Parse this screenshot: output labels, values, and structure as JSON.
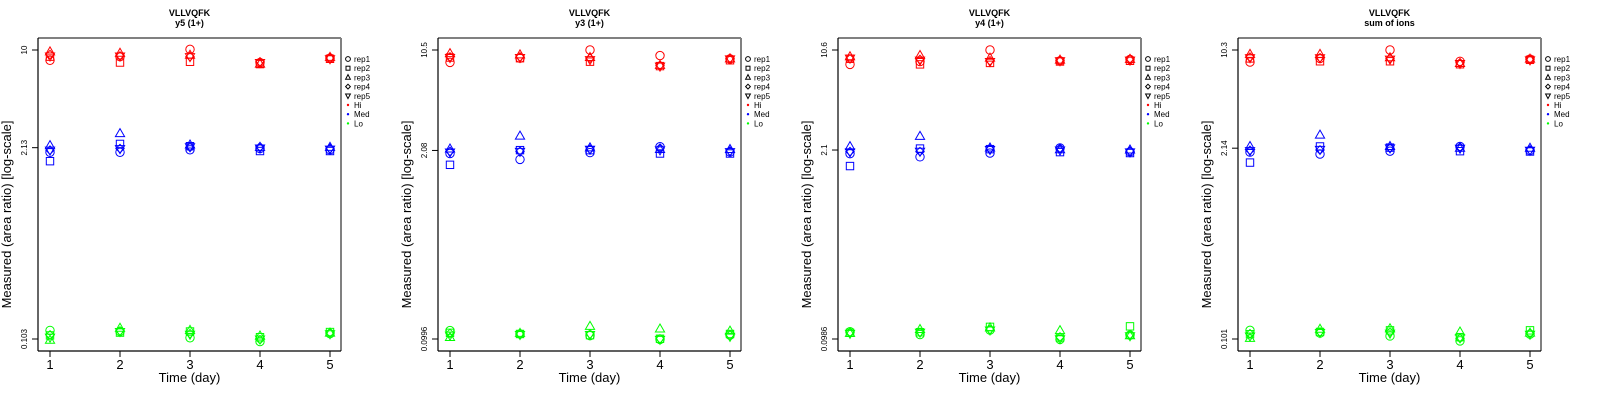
{
  "colors": {
    "Hi": "#ff0000",
    "Med": "#0000ff",
    "Lo": "#00ff00",
    "axis": "#000000",
    "box_light": "#808080"
  },
  "chart_data": [
    {
      "type": "scatter",
      "title": "VLLVQFK",
      "subtitle": "y5 (1+)",
      "xlabel": "Time (day)",
      "ylabel": "Measured (area ratio) [log-scale]",
      "yscale": "log",
      "x_ticks": [
        "1",
        "2",
        "3",
        "4",
        "5"
      ],
      "y_tick_labels": [
        "10",
        "2.13",
        "0.103"
      ],
      "y_tick_values": [
        10,
        2.13,
        0.103
      ],
      "xlim": [
        0.85,
        5.15
      ],
      "ylim": [
        0.0852,
        12.09
      ],
      "legend_position": "right",
      "legend": [
        "rep1",
        "rep2",
        "rep3",
        "rep4",
        "rep5",
        "Hi",
        "Med",
        "Lo"
      ],
      "series": [
        {
          "name": "Hi",
          "reps": {
            "rep1": [
              8.5,
              9.0,
              10.1,
              8.2,
              8.8
            ],
            "rep2": [
              9.0,
              8.2,
              8.3,
              8.0,
              8.7
            ],
            "rep3": [
              9.7,
              9.5,
              9.2,
              8.0,
              8.9
            ],
            "rep4": [
              9.3,
              9.1,
              9.0,
              8.3,
              8.8
            ],
            "rep5": [
              9.1,
              9.1,
              9.0,
              8.2,
              8.7
            ]
          }
        },
        {
          "name": "Med",
          "reps": {
            "rep1": [
              1.98,
              1.98,
              2.06,
              2.1,
              2.06
            ],
            "rep2": [
              1.72,
              2.26,
              2.18,
              2.02,
              2.02
            ],
            "rep3": [
              2.2,
              2.66,
              2.22,
              2.14,
              2.14
            ],
            "rep4": [
              2.05,
              2.1,
              2.14,
              2.16,
              2.1
            ],
            "rep5": [
              2.05,
              2.1,
              2.16,
              2.12,
              2.08
            ]
          }
        },
        {
          "name": "Lo",
          "reps": {
            "rep1": [
              0.118,
              0.116,
              0.105,
              0.099,
              0.112
            ],
            "rep2": [
              0.109,
              0.114,
              0.116,
              0.106,
              0.115
            ],
            "rep3": [
              0.101,
              0.122,
              0.118,
              0.108,
              0.113
            ],
            "rep4": [
              0.11,
              0.117,
              0.112,
              0.102,
              0.114
            ],
            "rep5": [
              0.106,
              0.116,
              0.111,
              0.103,
              0.112
            ]
          }
        }
      ]
    },
    {
      "type": "scatter",
      "title": "VLLVQFK",
      "subtitle": "y3 (1+)",
      "xlabel": "Time (day)",
      "ylabel": "Measured (area ratio) [log-scale]",
      "yscale": "log",
      "x_ticks": [
        "1",
        "2",
        "3",
        "4",
        "5"
      ],
      "y_tick_labels": [
        "10.5",
        "2.08",
        "0.0996"
      ],
      "y_tick_values": [
        10.5,
        2.08,
        0.0996
      ],
      "xlim": [
        0.85,
        5.15
      ],
      "ylim": [
        0.0822,
        12.72
      ],
      "legend_position": "right",
      "legend": [
        "rep1",
        "rep2",
        "rep3",
        "rep4",
        "rep5",
        "Hi",
        "Med",
        "Lo"
      ],
      "series": [
        {
          "name": "Hi",
          "reps": {
            "rep1": [
              8.6,
              9.2,
              10.5,
              9.6,
              9.1
            ],
            "rep2": [
              9.3,
              9.2,
              8.7,
              8.1,
              8.9
            ],
            "rep3": [
              9.9,
              9.7,
              9.3,
              8.2,
              9.1
            ],
            "rep4": [
              9.4,
              9.4,
              9.2,
              8.2,
              9.2
            ],
            "rep5": [
              9.3,
              9.3,
              9.0,
              8.1,
              9.1
            ]
          }
        },
        {
          "name": "Med",
          "reps": {
            "rep1": [
              1.98,
              1.8,
              2.01,
              2.21,
              2.03
            ],
            "rep2": [
              1.65,
              2.09,
              2.09,
              1.98,
              1.98
            ],
            "rep3": [
              2.13,
              2.62,
              2.17,
              2.11,
              2.11
            ],
            "rep4": [
              2.05,
              2.05,
              2.12,
              2.16,
              2.06
            ],
            "rep5": [
              2.03,
              2.05,
              2.12,
              2.1,
              2.04
            ]
          }
        },
        {
          "name": "Lo",
          "reps": {
            "rep1": [
              0.114,
              0.108,
              0.105,
              0.099,
              0.106
            ],
            "rep2": [
              0.11,
              0.108,
              0.106,
              0.1,
              0.108
            ],
            "rep3": [
              0.102,
              0.109,
              0.122,
              0.117,
              0.113
            ],
            "rep4": [
              0.109,
              0.108,
              0.108,
              0.1,
              0.106
            ],
            "rep5": [
              0.106,
              0.107,
              0.107,
              0.099,
              0.104
            ]
          }
        }
      ]
    },
    {
      "type": "scatter",
      "title": "VLLVQFK",
      "subtitle": "y4 (1+)",
      "xlabel": "Time (day)",
      "ylabel": "Measured (area ratio) [log-scale]",
      "yscale": "log",
      "x_ticks": [
        "1",
        "2",
        "3",
        "4",
        "5"
      ],
      "y_tick_labels": [
        "10.6",
        "2.1",
        "0.0986"
      ],
      "y_tick_values": [
        10.6,
        2.1,
        0.0986
      ],
      "xlim": [
        0.85,
        5.15
      ],
      "ylim": [
        0.0814,
        12.84
      ],
      "legend_position": "right",
      "legend": [
        "rep1",
        "rep2",
        "rep3",
        "rep4",
        "rep5",
        "Hi",
        "Med",
        "Lo"
      ],
      "series": [
        {
          "name": "Hi",
          "reps": {
            "rep1": [
              8.4,
              8.8,
              10.6,
              8.9,
              9.1
            ],
            "rep2": [
              9.2,
              8.4,
              8.6,
              8.8,
              8.9
            ],
            "rep3": [
              9.5,
              9.7,
              9.3,
              9.0,
              9.1
            ],
            "rep4": [
              9.2,
              9.1,
              8.9,
              8.9,
              9.2
            ],
            "rep5": [
              9.3,
              9.0,
              8.8,
              8.9,
              9.0
            ]
          }
        },
        {
          "name": "Med",
          "reps": {
            "rep1": [
              1.98,
              1.88,
              2.0,
              2.17,
              2.04
            ],
            "rep2": [
              1.62,
              2.15,
              2.13,
              2.03,
              2.0
            ],
            "rep3": [
              2.22,
              2.62,
              2.17,
              2.11,
              2.1
            ],
            "rep4": [
              2.05,
              2.05,
              2.13,
              2.16,
              2.06
            ],
            "rep5": [
              2.04,
              2.06,
              2.12,
              2.1,
              2.04
            ]
          }
        },
        {
          "name": "Lo",
          "reps": {
            "rep1": [
              0.111,
              0.106,
              0.114,
              0.098,
              0.105
            ],
            "rep2": [
              0.109,
              0.11,
              0.12,
              0.101,
              0.121
            ],
            "rep3": [
              0.108,
              0.115,
              0.118,
              0.113,
              0.104
            ],
            "rep4": [
              0.11,
              0.11,
              0.115,
              0.102,
              0.106
            ],
            "rep5": [
              0.108,
              0.11,
              0.114,
              0.099,
              0.104
            ]
          }
        }
      ]
    },
    {
      "type": "scatter",
      "title": "VLLVQFK",
      "subtitle": "sum of ions",
      "xlabel": "Time (day)",
      "ylabel": "Measured (area ratio) [log-scale]",
      "yscale": "log",
      "x_ticks": [
        "1",
        "2",
        "3",
        "4",
        "5"
      ],
      "y_tick_labels": [
        "10.3",
        "2.14",
        "0.101"
      ],
      "y_tick_values": [
        10.3,
        2.14,
        0.101
      ],
      "xlim": [
        0.85,
        5.15
      ],
      "ylim": [
        0.0835,
        12.45
      ],
      "legend_position": "right",
      "legend": [
        "rep1",
        "rep2",
        "rep3",
        "rep4",
        "rep5",
        "Hi",
        "Med",
        "Lo"
      ],
      "series": [
        {
          "name": "Hi",
          "reps": {
            "rep1": [
              8.5,
              9.0,
              10.3,
              8.6,
              8.9
            ],
            "rep2": [
              9.0,
              8.6,
              8.6,
              8.2,
              8.8
            ],
            "rep3": [
              9.6,
              9.6,
              9.1,
              8.3,
              8.9
            ],
            "rep4": [
              9.2,
              9.1,
              9.0,
              8.4,
              8.9
            ],
            "rep5": [
              9.1,
              9.1,
              8.9,
              8.3,
              8.8
            ]
          }
        },
        {
          "name": "Med",
          "reps": {
            "rep1": [
              2.01,
              1.95,
              2.04,
              2.2,
              2.06
            ],
            "rep2": [
              1.7,
              2.2,
              2.16,
              2.04,
              2.03
            ],
            "rep3": [
              2.2,
              2.64,
              2.2,
              2.14,
              2.14
            ],
            "rep4": [
              2.07,
              2.08,
              2.14,
              2.18,
              2.08
            ],
            "rep5": [
              2.06,
              2.1,
              2.15,
              2.14,
              2.07
            ]
          }
        },
        {
          "name": "Lo",
          "reps": {
            "rep1": [
              0.116,
              0.111,
              0.106,
              0.098,
              0.109
            ],
            "rep2": [
              0.109,
              0.113,
              0.116,
              0.104,
              0.116
            ],
            "rep3": [
              0.102,
              0.118,
              0.119,
              0.113,
              0.111
            ],
            "rep4": [
              0.11,
              0.113,
              0.113,
              0.102,
              0.111
            ],
            "rep5": [
              0.106,
              0.112,
              0.111,
              0.103,
              0.109
            ]
          }
        }
      ]
    }
  ]
}
